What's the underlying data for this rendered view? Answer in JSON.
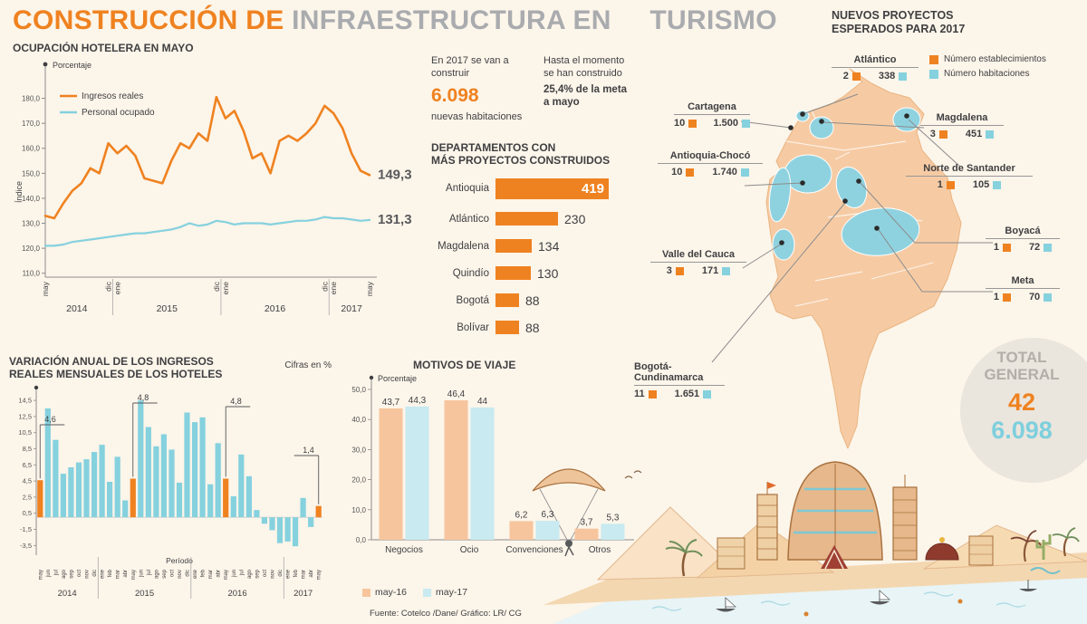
{
  "meta": {
    "bg": "#fcf5ea",
    "orange": "#ef8220",
    "blue": "#85d1de",
    "title_gray": "#a9abae",
    "dark_text": "#3f3f41",
    "map_peach": "#f6cba4",
    "map_blue": "#8fd2df"
  },
  "header": {
    "title_part1": "CONSTRUCCIÓN DE",
    "title_part2": "INFRAESTRUCTURA EN",
    "title_part3": "TURISMO"
  },
  "highlights": {
    "p1_pre": "En 2017 se van a construir",
    "p1_big": "6.098",
    "p1_post": "nuevas habitaciones",
    "p2_pre": "Hasta el momento se han construido",
    "p2_bold": "25,4% de la meta a mayo"
  },
  "map": {
    "title": "NUEVOS PROYECTOS\nESPERADOS PARA 2017",
    "legend": [
      {
        "label": "Número establecimientos",
        "color": "#ef8220"
      },
      {
        "label": "Número habitaciones",
        "color": "#85d1de"
      }
    ],
    "regions": [
      {
        "name": "Atlántico",
        "establecimientos": "2",
        "habitaciones": "338"
      },
      {
        "name": "Cartagena",
        "establecimientos": "10",
        "habitaciones": "1.500"
      },
      {
        "name": "Magdalena",
        "establecimientos": "3",
        "habitaciones": "451"
      },
      {
        "name": "Antioquia-Chocó",
        "establecimientos": "10",
        "habitaciones": "1.740"
      },
      {
        "name": "Norte de Santander",
        "establecimientos": "1",
        "habitaciones": "105"
      },
      {
        "name": "Boyacá",
        "establecimientos": "1",
        "habitaciones": "72"
      },
      {
        "name": "Meta",
        "establecimientos": "1",
        "habitaciones": "70"
      },
      {
        "name": "Valle del Cauca",
        "establecimientos": "3",
        "habitaciones": "171"
      },
      {
        "name": "Bogotá-Cundinamarca",
        "establecimientos": "11",
        "habitaciones": "1.651"
      }
    ],
    "total": {
      "label": "TOTAL\nGENERAL",
      "establecimientos": "42",
      "habitaciones": "6.098"
    }
  },
  "footer": {
    "source": "Fuente: Cotelco /Dane/ Gráfico: LR/ CG"
  },
  "chart_data": [
    {
      "id": "hotel_occupancy",
      "type": "line",
      "title": "OCUPACIÓN HOTELERA EN MAYO",
      "unit": "Porcentaje",
      "ylabel": "Índice",
      "ylim": [
        110,
        180
      ],
      "yticks": [
        110,
        120,
        130,
        140,
        150,
        160,
        170,
        180
      ],
      "x_months": [
        "may",
        "jun",
        "jul",
        "ago",
        "sep",
        "oct",
        "nov",
        "dic",
        "ene",
        "feb",
        "mar",
        "abr",
        "may",
        "jun",
        "jul",
        "ago",
        "sep",
        "oct",
        "nov",
        "dic",
        "ene",
        "feb",
        "mar",
        "abr",
        "may",
        "jun",
        "jul",
        "ago",
        "sep",
        "oct",
        "nov",
        "dic",
        "ene",
        "feb",
        "mar",
        "abr",
        "may"
      ],
      "x_ticks": [
        {
          "i": 0,
          "label": "may"
        },
        {
          "i": 7,
          "label": "dic"
        },
        {
          "i": 8,
          "label": "ene"
        },
        {
          "i": 19,
          "label": "dic"
        },
        {
          "i": 20,
          "label": "ene"
        },
        {
          "i": 31,
          "label": "dic"
        },
        {
          "i": 32,
          "label": "ene"
        },
        {
          "i": 36,
          "label": "may"
        }
      ],
      "year_bands": [
        {
          "label": "2014",
          "start": 0,
          "end": 7
        },
        {
          "label": "2015",
          "start": 8,
          "end": 19
        },
        {
          "label": "2016",
          "start": 20,
          "end": 31
        },
        {
          "label": "2017",
          "start": 32,
          "end": 36
        }
      ],
      "series": [
        {
          "name": "Ingresos reales",
          "color": "#ef8220",
          "end_label": "149,3",
          "values": [
            133,
            132,
            138,
            143,
            146,
            152,
            150,
            162,
            158,
            161,
            157,
            148,
            147,
            146,
            155,
            162,
            160,
            166,
            163,
            180.5,
            172,
            175,
            167,
            156,
            158,
            150,
            163,
            165,
            163,
            166,
            170,
            177,
            174,
            168,
            158,
            151,
            149.3
          ]
        },
        {
          "name": "Personal ocupado",
          "color": "#85d1de",
          "end_label": "131,3",
          "values": [
            121,
            121,
            121.5,
            122.5,
            123,
            123.5,
            124,
            124.5,
            125,
            125.5,
            126,
            126,
            126.5,
            127,
            127.5,
            128.5,
            130,
            129,
            129.5,
            131,
            130.5,
            129.5,
            130,
            130,
            130,
            129.5,
            130,
            130.5,
            131,
            131,
            131.5,
            132.5,
            132,
            132,
            131.5,
            131,
            131.3
          ]
        }
      ]
    },
    {
      "id": "departments",
      "type": "bar",
      "title": "DEPARTAMENTOS CON\nMÁS PROYECTOS CONSTRUIDOS",
      "categories": [
        "Antioquia",
        "Atlántico",
        "Magdalena",
        "Quindío",
        "Bogotá",
        "Bolívar"
      ],
      "values": [
        419,
        230,
        134,
        130,
        88,
        88
      ],
      "highlight_index": 0,
      "bar_color": "#ef8220"
    },
    {
      "id": "annual_variation",
      "type": "bar",
      "title": "VARIACIÓN ANUAL DE LOS INGRESOS\nREALES MENSUALES DE LOS HOTELES",
      "subtitle": "Cifras en %",
      "xlabel": "Período",
      "ylim": [
        -4.5,
        14.5
      ],
      "yticks": [
        14.5,
        12.5,
        10.5,
        8.5,
        6.5,
        4.5,
        2.5,
        0.5,
        -1.5,
        -3.5
      ],
      "months": [
        "may",
        "jun",
        "jul",
        "ago",
        "sep",
        "oct",
        "nov",
        "dic",
        "ene",
        "feb",
        "mar",
        "abr",
        "may",
        "jun",
        "jul",
        "ago",
        "sep",
        "oct",
        "nov",
        "dic",
        "ene",
        "feb",
        "mar",
        "abr",
        "may",
        "jun",
        "jul",
        "ago",
        "sep",
        "oct",
        "nov",
        "dic",
        "ene",
        "feb",
        "mar",
        "abr",
        "may"
      ],
      "values": [
        4.6,
        13.5,
        9.6,
        5.4,
        6.2,
        6.8,
        7.2,
        8.1,
        9.0,
        4.4,
        7.5,
        2.1,
        4.8,
        14.5,
        11.2,
        8.8,
        10.3,
        8.4,
        4.3,
        13.0,
        11.8,
        12.4,
        4.1,
        9.2,
        4.8,
        2.6,
        7.8,
        5.1,
        0.9,
        -0.8,
        -1.6,
        -3.2,
        -3.0,
        -3.6,
        2.4,
        -1.2,
        1.4
      ],
      "bar_color": "#85d1de",
      "highlight_color": "#ef8220",
      "highlight_indices": [
        0,
        12,
        24,
        36
      ],
      "callouts": [
        {
          "index": 0,
          "label": "4,6"
        },
        {
          "index": 12,
          "label": "4,8"
        },
        {
          "index": 24,
          "label": "4,8"
        },
        {
          "index": 36,
          "label": "1,4"
        }
      ],
      "year_bands": [
        {
          "label": "2014",
          "start": 0,
          "end": 7
        },
        {
          "label": "2015",
          "start": 8,
          "end": 19
        },
        {
          "label": "2016",
          "start": 20,
          "end": 31
        },
        {
          "label": "2017",
          "start": 32,
          "end": 36
        }
      ]
    },
    {
      "id": "travel_motives",
      "type": "bar",
      "title": "MOTIVOS DE VIAJE",
      "unit": "Porcentaje",
      "categories": [
        "Negocios",
        "Ocio",
        "Convenciones",
        "Otros"
      ],
      "ylim": [
        0,
        50
      ],
      "yticks": [
        0,
        10,
        20,
        30,
        40,
        50
      ],
      "series": [
        {
          "name": "may-16",
          "color": "#f7c59d",
          "values": [
            43.7,
            46.4,
            6.2,
            3.7
          ],
          "labels": [
            "43,7",
            "46,4",
            "6,2",
            "3,7"
          ]
        },
        {
          "name": "may-17",
          "color": "#c8eaf0",
          "values": [
            44.3,
            44,
            6.3,
            5.3
          ],
          "labels": [
            "44,3",
            "44",
            "6,3",
            "5,3"
          ]
        }
      ]
    }
  ]
}
